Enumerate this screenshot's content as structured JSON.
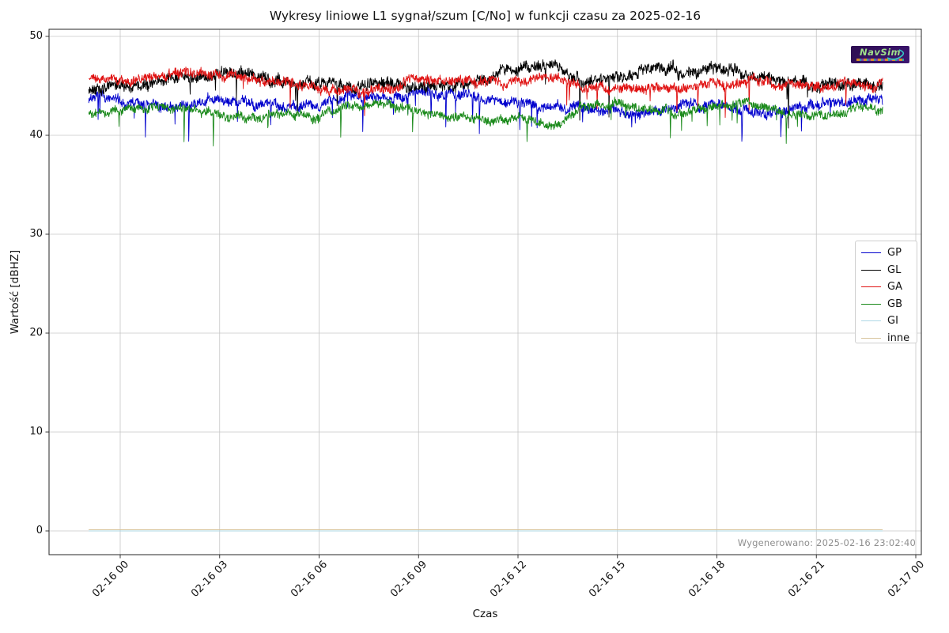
{
  "figure": {
    "generated_note": "Wygenerowano: 2025-02-16 23:02:40",
    "watermark": {
      "brand": "NavSim",
      "bg_color": "#2e0d52",
      "text_color": "#9fe08a",
      "swoosh_color": "#35c8c4"
    },
    "style": {
      "grid_color": "#c6c6c6",
      "frame_color": "#262626",
      "note_color": "#8f8f8f"
    }
  },
  "chart_data": {
    "type": "line",
    "title": "Wykresy liniowe L1 sygnał/szum [C/No] w funkcji czasu za 2025-02-16",
    "xlabel": "Czas",
    "ylabel": "Wartość [dBHZ]",
    "x_tick_labels": [
      "02-16 00",
      "02-16 03",
      "02-16 06",
      "02-16 09",
      "02-16 12",
      "02-16 15",
      "02-16 18",
      "02-16 21",
      "02-17 00"
    ],
    "x_tick_hours": [
      0,
      3,
      6,
      9,
      12,
      15,
      18,
      21,
      24
    ],
    "y_tick_values": [
      0,
      10,
      20,
      30,
      40,
      50
    ],
    "ylim": [
      -2.4,
      50.7
    ],
    "xlim_hours": [
      -2.15,
      24.17
    ],
    "data_time_range_hours": [
      -0.95,
      23.0
    ],
    "grid": true,
    "legend_position": "center-right",
    "series": [
      {
        "name": "GP",
        "color": "#0000cd",
        "seed": 7,
        "hourly_means_t_minus1_to_23": [
          43.8,
          43.5,
          42.8,
          43.0,
          43.6,
          43.4,
          43.2,
          43.0,
          43.8,
          44.0,
          44.3,
          44.4,
          43.8,
          43.4,
          43.0,
          42.8,
          42.6,
          42.4,
          43.2,
          43.0,
          42.4,
          42.6,
          43.2,
          43.6,
          43.8
        ],
        "noise_walk": 0.28,
        "noise_jitter": 0.4,
        "spike_prob": 0.011,
        "spike_depth": 3.1,
        "clamp": [
          39.4,
          45.8
        ]
      },
      {
        "name": "GL",
        "color": "#000000",
        "seed": 13,
        "hourly_means_t_minus1_to_23": [
          44.8,
          45.0,
          45.3,
          45.8,
          46.3,
          46.0,
          45.4,
          45.2,
          45.0,
          45.6,
          45.0,
          45.2,
          45.6,
          46.8,
          47.0,
          45.4,
          45.8,
          46.9,
          46.2,
          46.9,
          46.0,
          45.6,
          45.2,
          45.0,
          45.0
        ],
        "noise_walk": 0.3,
        "noise_jitter": 0.46,
        "spike_prob": 0.005,
        "spike_depth": 3.6,
        "clamp": [
          39.6,
          48.2
        ]
      },
      {
        "name": "GA",
        "color": "#e01212",
        "seed": 21,
        "hourly_means_t_minus1_to_23": [
          45.8,
          45.5,
          45.9,
          46.2,
          46.0,
          45.6,
          45.3,
          44.8,
          44.4,
          44.6,
          45.8,
          45.4,
          45.6,
          45.2,
          46.2,
          44.8,
          45.0,
          44.6,
          44.8,
          45.2,
          45.6,
          45.3,
          44.9,
          45.0,
          45.2
        ],
        "noise_walk": 0.26,
        "noise_jitter": 0.38,
        "spike_prob": 0.006,
        "spike_depth": 2.4,
        "clamp": [
          41.8,
          47.3
        ]
      },
      {
        "name": "GB",
        "color": "#1b8a1b",
        "seed": 42,
        "hourly_means_t_minus1_to_23": [
          42.3,
          42.5,
          42.8,
          42.6,
          41.8,
          42.0,
          42.2,
          42.0,
          43.0,
          43.2,
          42.4,
          41.8,
          41.4,
          41.8,
          41.0,
          42.8,
          43.2,
          42.6,
          42.2,
          43.0,
          43.0,
          42.2,
          42.0,
          42.6,
          42.8
        ],
        "noise_walk": 0.24,
        "noise_jitter": 0.34,
        "spike_prob": 0.012,
        "spike_depth": 2.7,
        "clamp": [
          38.4,
          44.0
        ]
      },
      {
        "name": "GI",
        "color": "#add8e6",
        "flat_value": 0.0
      },
      {
        "name": "inne",
        "color": "#d8c49c",
        "flat_value": 0.12
      }
    ]
  }
}
